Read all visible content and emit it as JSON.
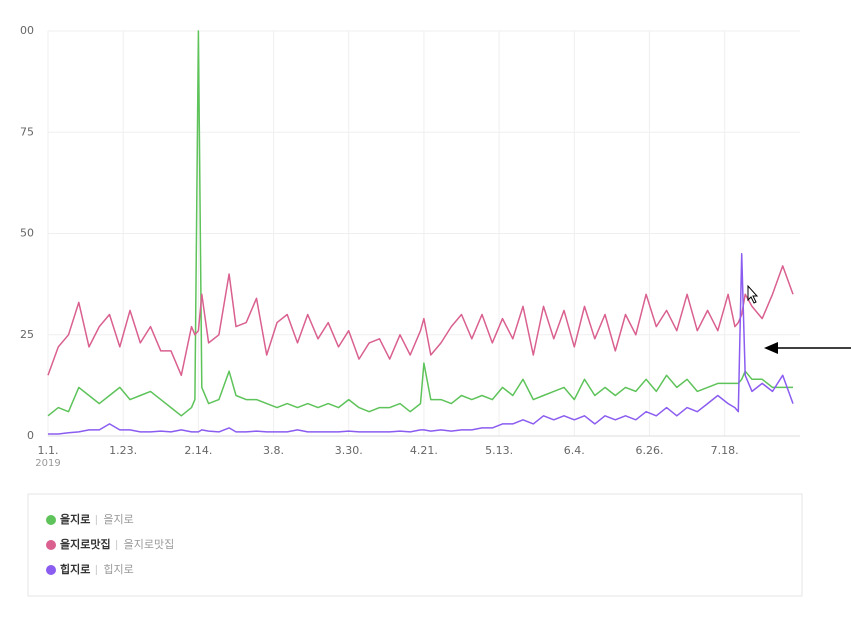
{
  "chart_data": {
    "type": "line",
    "x": [
      0,
      3,
      6,
      9,
      12,
      15,
      18,
      21,
      24,
      27,
      30,
      33,
      36,
      39,
      42,
      43,
      44,
      45,
      47,
      50,
      53,
      55,
      58,
      61,
      64,
      67,
      70,
      73,
      76,
      79,
      82,
      85,
      88,
      91,
      94,
      97,
      100,
      103,
      106,
      109,
      110,
      112,
      115,
      118,
      121,
      124,
      127,
      130,
      133,
      136,
      139,
      142,
      145,
      148,
      151,
      154,
      157,
      160,
      163,
      166,
      169,
      172,
      175,
      178,
      181,
      184,
      187,
      190,
      193,
      196,
      199,
      201,
      202,
      203,
      204,
      206,
      209,
      212,
      215,
      218
    ],
    "xlim": [
      0,
      218
    ],
    "xticks": [
      {
        "value": 0,
        "label": "1.1."
      },
      {
        "value": 22,
        "label": "1.23."
      },
      {
        "value": 44,
        "label": "2.14."
      },
      {
        "value": 66,
        "label": "3.8."
      },
      {
        "value": 88,
        "label": "3.30."
      },
      {
        "value": 110,
        "label": "4.21."
      },
      {
        "value": 132,
        "label": "5.13."
      },
      {
        "value": 154,
        "label": "6.4."
      },
      {
        "value": 176,
        "label": "6.26."
      },
      {
        "value": 198,
        "label": "7.18."
      }
    ],
    "year": "2019",
    "ylim": [
      0,
      100
    ],
    "yticks": [
      0,
      25,
      50,
      75,
      {
        "value": 100,
        "label": "00"
      }
    ],
    "grid": true,
    "series": [
      {
        "name": "을지로",
        "keyword": "을지로",
        "color": "#5ec35a",
        "values": [
          5,
          7,
          6,
          12,
          10,
          8,
          10,
          12,
          9,
          10,
          11,
          9,
          7,
          5,
          7,
          9,
          100,
          12,
          8,
          9,
          16,
          10,
          9,
          9,
          8,
          7,
          8,
          7,
          8,
          7,
          8,
          7,
          9,
          7,
          6,
          7,
          7,
          8,
          6,
          8,
          18,
          9,
          9,
          8,
          10,
          9,
          10,
          9,
          12,
          10,
          14,
          9,
          10,
          11,
          12,
          9,
          14,
          10,
          12,
          10,
          12,
          11,
          14,
          11,
          15,
          12,
          14,
          11,
          12,
          13,
          13,
          13,
          13,
          14,
          16,
          14,
          14,
          12,
          12,
          12
        ]
      },
      {
        "name": "을지로맛집",
        "keyword": "을지로맛집",
        "color": "#d9608f",
        "values": [
          15,
          22,
          25,
          33,
          22,
          27,
          30,
          22,
          31,
          23,
          27,
          21,
          21,
          15,
          27,
          25,
          26,
          35,
          23,
          25,
          40,
          27,
          28,
          34,
          20,
          28,
          30,
          23,
          30,
          24,
          28,
          22,
          26,
          19,
          23,
          24,
          19,
          25,
          20,
          26,
          29,
          20,
          23,
          27,
          30,
          24,
          30,
          23,
          29,
          24,
          32,
          20,
          32,
          24,
          31,
          22,
          32,
          24,
          30,
          21,
          30,
          25,
          35,
          27,
          31,
          26,
          35,
          26,
          31,
          26,
          35,
          27,
          28,
          30,
          35,
          32,
          29,
          35,
          42,
          35
        ]
      },
      {
        "name": "힙지로",
        "keyword": "힙지로",
        "color": "#8b5cf0",
        "values": [
          0.5,
          0.5,
          0.8,
          1,
          1.5,
          1.5,
          3,
          1.5,
          1.5,
          1,
          1,
          1.2,
          1,
          1.5,
          1,
          1,
          1,
          1.5,
          1.2,
          1,
          2,
          1,
          1,
          1.2,
          1,
          1,
          1,
          1.5,
          1,
          1,
          1,
          1,
          1.2,
          1,
          1,
          1,
          1,
          1.2,
          1,
          1.5,
          1.5,
          1.2,
          1.5,
          1.2,
          1.5,
          1.5,
          2,
          2,
          3,
          3,
          4,
          3,
          5,
          4,
          5,
          4,
          5,
          3,
          5,
          4,
          5,
          4,
          6,
          5,
          7,
          5,
          7,
          6,
          8,
          10,
          8,
          7,
          6,
          45,
          15,
          11,
          13,
          11,
          15,
          8
        ]
      }
    ]
  }
}
